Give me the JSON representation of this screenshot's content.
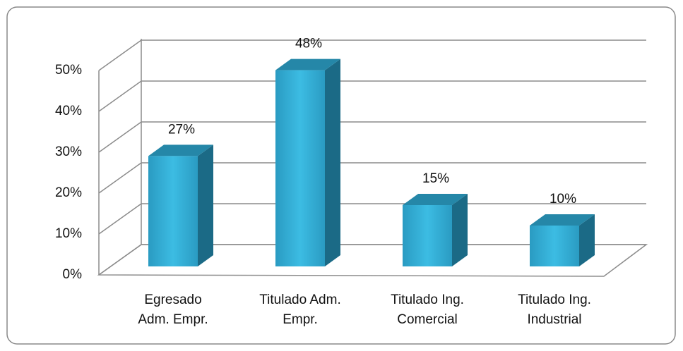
{
  "chart_data": {
    "type": "bar3d",
    "categories": [
      [
        "Egresado",
        "Adm. Empr."
      ],
      [
        "Titulado  Adm.",
        "Empr."
      ],
      [
        "Titulado Ing.",
        "Comercial"
      ],
      [
        "Titulado Ing.",
        "Industrial"
      ]
    ],
    "values": [
      27,
      48,
      15,
      10
    ],
    "value_labels": [
      "27%",
      "48%",
      "15%",
      "10%"
    ],
    "color": "#31aed6",
    "ylim": [
      0,
      50
    ],
    "yticks": [
      {
        "value": 0,
        "label": "0%"
      },
      {
        "value": 10,
        "label": "10%"
      },
      {
        "value": 20,
        "label": "20%"
      },
      {
        "value": 30,
        "label": "30%"
      },
      {
        "value": 40,
        "label": "40%"
      },
      {
        "value": 50,
        "label": "50%"
      }
    ],
    "grid": true
  }
}
